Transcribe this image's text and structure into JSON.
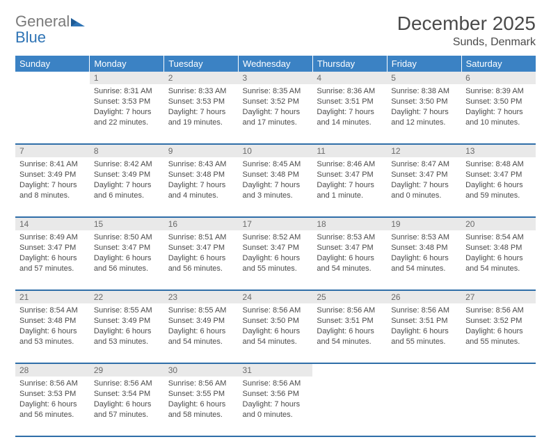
{
  "brand": {
    "name1": "General",
    "name2": "Blue"
  },
  "title": "December 2025",
  "location": "Sunds, Denmark",
  "colors": {
    "header_bg": "#3b82c4",
    "header_text": "#ffffff",
    "daynum_bg": "#e9e9e9",
    "row_divider": "#2f6ea8",
    "text": "#4a4a4a",
    "logo_gray": "#7a7a7a",
    "logo_blue": "#2f74b5"
  },
  "typography": {
    "title_fontsize": 28,
    "location_fontsize": 16,
    "header_fontsize": 13,
    "daynum_fontsize": 12,
    "cell_fontsize": 11
  },
  "weekdays": [
    "Sunday",
    "Monday",
    "Tuesday",
    "Wednesday",
    "Thursday",
    "Friday",
    "Saturday"
  ],
  "weeks": [
    {
      "nums": [
        "",
        "1",
        "2",
        "3",
        "4",
        "5",
        "6"
      ],
      "cells": [
        null,
        {
          "sunrise": "Sunrise: 8:31 AM",
          "sunset": "Sunset: 3:53 PM",
          "daylight": "Daylight: 7 hours and 22 minutes."
        },
        {
          "sunrise": "Sunrise: 8:33 AM",
          "sunset": "Sunset: 3:53 PM",
          "daylight": "Daylight: 7 hours and 19 minutes."
        },
        {
          "sunrise": "Sunrise: 8:35 AM",
          "sunset": "Sunset: 3:52 PM",
          "daylight": "Daylight: 7 hours and 17 minutes."
        },
        {
          "sunrise": "Sunrise: 8:36 AM",
          "sunset": "Sunset: 3:51 PM",
          "daylight": "Daylight: 7 hours and 14 minutes."
        },
        {
          "sunrise": "Sunrise: 8:38 AM",
          "sunset": "Sunset: 3:50 PM",
          "daylight": "Daylight: 7 hours and 12 minutes."
        },
        {
          "sunrise": "Sunrise: 8:39 AM",
          "sunset": "Sunset: 3:50 PM",
          "daylight": "Daylight: 7 hours and 10 minutes."
        }
      ]
    },
    {
      "nums": [
        "7",
        "8",
        "9",
        "10",
        "11",
        "12",
        "13"
      ],
      "cells": [
        {
          "sunrise": "Sunrise: 8:41 AM",
          "sunset": "Sunset: 3:49 PM",
          "daylight": "Daylight: 7 hours and 8 minutes."
        },
        {
          "sunrise": "Sunrise: 8:42 AM",
          "sunset": "Sunset: 3:49 PM",
          "daylight": "Daylight: 7 hours and 6 minutes."
        },
        {
          "sunrise": "Sunrise: 8:43 AM",
          "sunset": "Sunset: 3:48 PM",
          "daylight": "Daylight: 7 hours and 4 minutes."
        },
        {
          "sunrise": "Sunrise: 8:45 AM",
          "sunset": "Sunset: 3:48 PM",
          "daylight": "Daylight: 7 hours and 3 minutes."
        },
        {
          "sunrise": "Sunrise: 8:46 AM",
          "sunset": "Sunset: 3:47 PM",
          "daylight": "Daylight: 7 hours and 1 minute."
        },
        {
          "sunrise": "Sunrise: 8:47 AM",
          "sunset": "Sunset: 3:47 PM",
          "daylight": "Daylight: 7 hours and 0 minutes."
        },
        {
          "sunrise": "Sunrise: 8:48 AM",
          "sunset": "Sunset: 3:47 PM",
          "daylight": "Daylight: 6 hours and 59 minutes."
        }
      ]
    },
    {
      "nums": [
        "14",
        "15",
        "16",
        "17",
        "18",
        "19",
        "20"
      ],
      "cells": [
        {
          "sunrise": "Sunrise: 8:49 AM",
          "sunset": "Sunset: 3:47 PM",
          "daylight": "Daylight: 6 hours and 57 minutes."
        },
        {
          "sunrise": "Sunrise: 8:50 AM",
          "sunset": "Sunset: 3:47 PM",
          "daylight": "Daylight: 6 hours and 56 minutes."
        },
        {
          "sunrise": "Sunrise: 8:51 AM",
          "sunset": "Sunset: 3:47 PM",
          "daylight": "Daylight: 6 hours and 56 minutes."
        },
        {
          "sunrise": "Sunrise: 8:52 AM",
          "sunset": "Sunset: 3:47 PM",
          "daylight": "Daylight: 6 hours and 55 minutes."
        },
        {
          "sunrise": "Sunrise: 8:53 AM",
          "sunset": "Sunset: 3:47 PM",
          "daylight": "Daylight: 6 hours and 54 minutes."
        },
        {
          "sunrise": "Sunrise: 8:53 AM",
          "sunset": "Sunset: 3:48 PM",
          "daylight": "Daylight: 6 hours and 54 minutes."
        },
        {
          "sunrise": "Sunrise: 8:54 AM",
          "sunset": "Sunset: 3:48 PM",
          "daylight": "Daylight: 6 hours and 54 minutes."
        }
      ]
    },
    {
      "nums": [
        "21",
        "22",
        "23",
        "24",
        "25",
        "26",
        "27"
      ],
      "cells": [
        {
          "sunrise": "Sunrise: 8:54 AM",
          "sunset": "Sunset: 3:48 PM",
          "daylight": "Daylight: 6 hours and 53 minutes."
        },
        {
          "sunrise": "Sunrise: 8:55 AM",
          "sunset": "Sunset: 3:49 PM",
          "daylight": "Daylight: 6 hours and 53 minutes."
        },
        {
          "sunrise": "Sunrise: 8:55 AM",
          "sunset": "Sunset: 3:49 PM",
          "daylight": "Daylight: 6 hours and 54 minutes."
        },
        {
          "sunrise": "Sunrise: 8:56 AM",
          "sunset": "Sunset: 3:50 PM",
          "daylight": "Daylight: 6 hours and 54 minutes."
        },
        {
          "sunrise": "Sunrise: 8:56 AM",
          "sunset": "Sunset: 3:51 PM",
          "daylight": "Daylight: 6 hours and 54 minutes."
        },
        {
          "sunrise": "Sunrise: 8:56 AM",
          "sunset": "Sunset: 3:51 PM",
          "daylight": "Daylight: 6 hours and 55 minutes."
        },
        {
          "sunrise": "Sunrise: 8:56 AM",
          "sunset": "Sunset: 3:52 PM",
          "daylight": "Daylight: 6 hours and 55 minutes."
        }
      ]
    },
    {
      "nums": [
        "28",
        "29",
        "30",
        "31",
        "",
        "",
        ""
      ],
      "cells": [
        {
          "sunrise": "Sunrise: 8:56 AM",
          "sunset": "Sunset: 3:53 PM",
          "daylight": "Daylight: 6 hours and 56 minutes."
        },
        {
          "sunrise": "Sunrise: 8:56 AM",
          "sunset": "Sunset: 3:54 PM",
          "daylight": "Daylight: 6 hours and 57 minutes."
        },
        {
          "sunrise": "Sunrise: 8:56 AM",
          "sunset": "Sunset: 3:55 PM",
          "daylight": "Daylight: 6 hours and 58 minutes."
        },
        {
          "sunrise": "Sunrise: 8:56 AM",
          "sunset": "Sunset: 3:56 PM",
          "daylight": "Daylight: 7 hours and 0 minutes."
        },
        null,
        null,
        null
      ]
    }
  ]
}
